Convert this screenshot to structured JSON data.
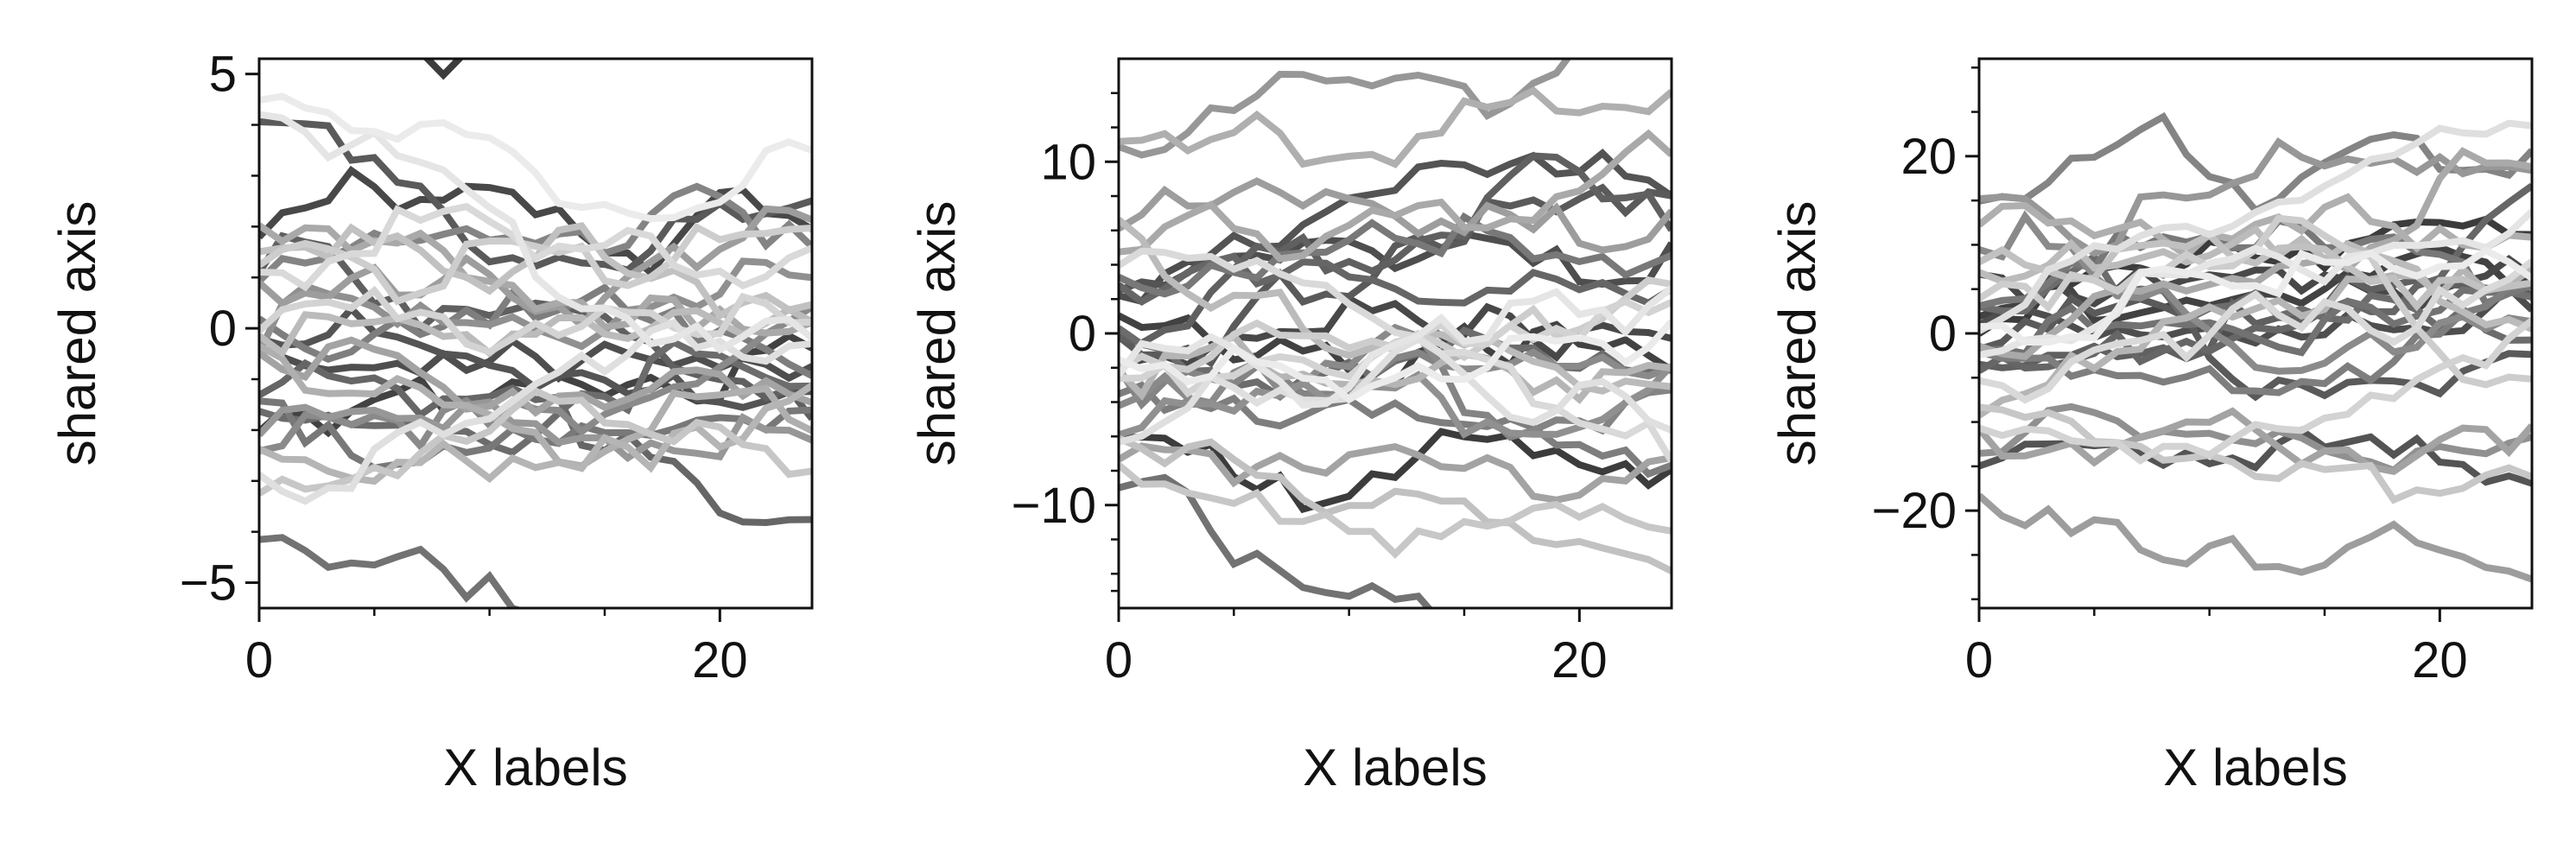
{
  "chart_data": [
    {
      "type": "line",
      "title": "",
      "xlabel": "X labels",
      "ylabel": "shared axis",
      "xlim": [
        0,
        24
      ],
      "ylim": [
        -5.5,
        5.3
      ],
      "xticks": [
        0,
        20
      ],
      "xtick_labels": [
        "0",
        "20"
      ],
      "xminor": [
        5,
        10,
        15
      ],
      "yticks": [
        -5,
        0,
        5
      ],
      "ytick_labels": [
        "−5",
        "0",
        "5"
      ],
      "yminor": [
        -4,
        -3,
        -2,
        -1,
        1,
        2,
        3,
        4
      ],
      "x": [
        0,
        1,
        2,
        3,
        4,
        5,
        6,
        7,
        8,
        9,
        10,
        11,
        12,
        13,
        14,
        15,
        16,
        17,
        18,
        19,
        20,
        21,
        22,
        23,
        24
      ],
      "series_count": 30,
      "series_spread": 2.2,
      "step_size": 0.3,
      "seed": 7
    },
    {
      "type": "line",
      "title": "",
      "xlabel": "X labels",
      "ylabel": "shared axis",
      "xlim": [
        0,
        24
      ],
      "ylim": [
        -16,
        16
      ],
      "xticks": [
        0,
        20
      ],
      "xtick_labels": [
        "0",
        "20"
      ],
      "xminor": [
        5,
        10,
        15
      ],
      "yticks": [
        -10,
        0,
        10
      ],
      "ytick_labels": [
        "−10",
        "0",
        "10"
      ],
      "yminor": [
        -15,
        -14,
        -12,
        -8,
        -6,
        -4,
        -2,
        2,
        4,
        6,
        8,
        12,
        14
      ],
      "x": [
        0,
        1,
        2,
        3,
        4,
        5,
        6,
        7,
        8,
        9,
        10,
        11,
        12,
        13,
        14,
        15,
        16,
        17,
        18,
        19,
        20,
        21,
        22,
        23,
        24
      ],
      "series_count": 30,
      "series_spread": 5.5,
      "step_size": 0.9,
      "seed": 19
    },
    {
      "type": "line",
      "title": "",
      "xlabel": "X labels",
      "ylabel": "shared axis",
      "xlim": [
        0,
        24
      ],
      "ylim": [
        -31,
        31
      ],
      "xticks": [
        0,
        20
      ],
      "xtick_labels": [
        "0",
        "20"
      ],
      "xminor": [
        5,
        10,
        15
      ],
      "yticks": [
        -20,
        0,
        20
      ],
      "ytick_labels": [
        "−20",
        "0",
        "20"
      ],
      "yminor": [
        -30,
        -25,
        -15,
        -10,
        -5,
        5,
        10,
        15,
        25,
        30
      ],
      "x": [
        0,
        1,
        2,
        3,
        4,
        5,
        6,
        7,
        8,
        9,
        10,
        11,
        12,
        13,
        14,
        15,
        16,
        17,
        18,
        19,
        20,
        21,
        22,
        23,
        24
      ],
      "series_count": 30,
      "series_spread": 8.0,
      "step_size": 1.6,
      "seed": 43
    }
  ]
}
